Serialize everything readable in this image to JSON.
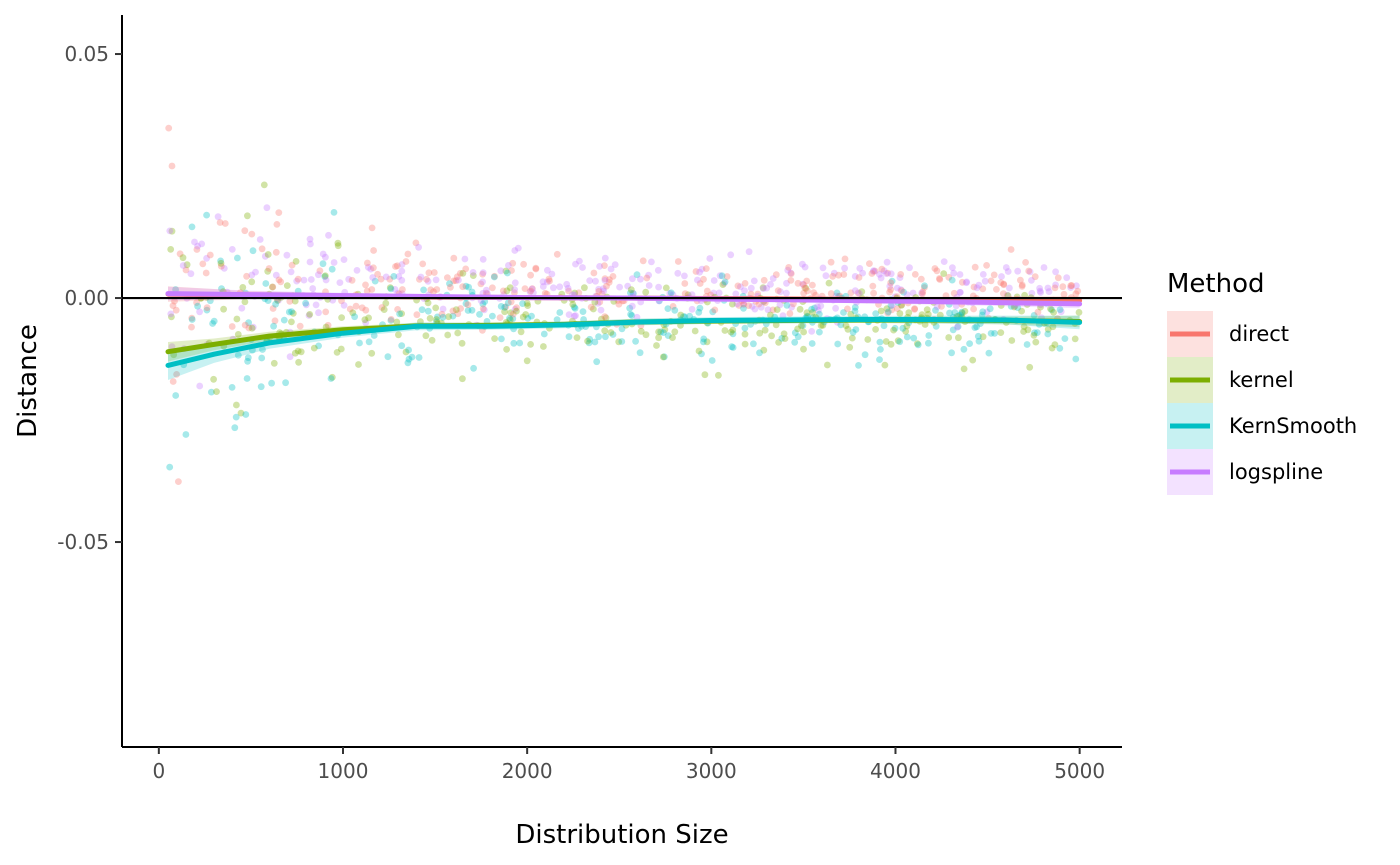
{
  "chart_data": {
    "type": "scatter",
    "title": "",
    "xlabel": "Distribution Size",
    "ylabel": "Distance",
    "xlim": [
      -200,
      5230
    ],
    "ylim": [
      -0.092,
      0.058
    ],
    "x_ticks": [
      0,
      1000,
      2000,
      3000,
      4000,
      5000
    ],
    "x_tick_labels": [
      "0",
      "1000",
      "2000",
      "3000",
      "4000",
      "5000"
    ],
    "y_ticks": [
      0.05,
      0.0,
      -0.05
    ],
    "y_tick_labels": [
      "0.05",
      "0.00",
      "-0.05"
    ],
    "reference_line_y": 0,
    "grid": false,
    "legend": {
      "title": "Method",
      "position": "right",
      "entries": [
        {
          "label": "direct",
          "color": "#F8766D"
        },
        {
          "label": "kernel",
          "color": "#7CAE00"
        },
        {
          "label": "KernSmooth",
          "color": "#00BFC4"
        },
        {
          "label": "logspline",
          "color": "#C77CFF"
        }
      ]
    },
    "series": [
      {
        "name": "direct",
        "color": "#F8766D",
        "smooth": {
          "x": [
            50,
            500,
            1000,
            1500,
            2000,
            2500,
            3000,
            3500,
            4000,
            4500,
            5000
          ],
          "y": [
            0.0008,
            0.0006,
            0.0004,
            0.0002,
            0.0001,
            0.0,
            -0.0001,
            -0.0002,
            -0.0003,
            -0.0004,
            -0.0005
          ],
          "band": [
            0.0016,
            0.0008,
            0.0006,
            0.0005,
            0.0005,
            0.0005,
            0.0005,
            0.0005,
            0.0006,
            0.0007,
            0.0009
          ]
        },
        "scatter": {
          "x_range": [
            50,
            5000
          ],
          "center": 0.002,
          "spread_small": 0.022,
          "spread_large": 0.005,
          "count": 290
        }
      },
      {
        "name": "kernel",
        "color": "#7CAE00",
        "smooth": {
          "x": [
            50,
            300,
            600,
            1000,
            1400,
            1800,
            2200,
            2600,
            3000,
            3400,
            3800,
            4200,
            4600,
            5000
          ],
          "y": [
            -0.011,
            -0.0095,
            -0.0078,
            -0.0065,
            -0.0057,
            -0.0056,
            -0.0054,
            -0.0049,
            -0.0047,
            -0.0046,
            -0.0045,
            -0.0045,
            -0.0046,
            -0.0048
          ],
          "band": [
            0.002,
            0.0012,
            0.0009,
            0.0007,
            0.0006,
            0.0006,
            0.0006,
            0.0006,
            0.0006,
            0.0006,
            0.0006,
            0.0007,
            0.0008,
            0.0012
          ]
        },
        "scatter": {
          "x_range": [
            50,
            5000
          ],
          "center": -0.005,
          "spread_small": 0.028,
          "spread_large": 0.0065,
          "count": 290
        }
      },
      {
        "name": "KernSmooth",
        "color": "#00BFC4",
        "smooth": {
          "x": [
            50,
            300,
            600,
            1000,
            1400,
            1800,
            2200,
            2600,
            3000,
            3400,
            3800,
            4200,
            4600,
            5000
          ],
          "y": [
            -0.0138,
            -0.0115,
            -0.0092,
            -0.0072,
            -0.0058,
            -0.0058,
            -0.0055,
            -0.0049,
            -0.0046,
            -0.0045,
            -0.0044,
            -0.0044,
            -0.0045,
            -0.005
          ],
          "band": [
            0.003,
            0.0018,
            0.0012,
            0.0009,
            0.0008,
            0.0007,
            0.0007,
            0.0007,
            0.0007,
            0.0007,
            0.0007,
            0.0008,
            0.0009,
            0.0014
          ]
        },
        "scatter": {
          "x_range": [
            50,
            5000
          ],
          "center": -0.005,
          "spread_small": 0.03,
          "spread_large": 0.0065,
          "count": 290
        }
      },
      {
        "name": "logspline",
        "color": "#C77CFF",
        "smooth": {
          "x": [
            50,
            500,
            1000,
            1500,
            2000,
            2500,
            3000,
            3500,
            4000,
            4500,
            5000
          ],
          "y": [
            0.0009,
            0.0007,
            0.0005,
            0.0003,
            0.0001,
            0.0,
            -0.0002,
            -0.0004,
            -0.0006,
            -0.0009,
            -0.0012
          ],
          "band": [
            0.0014,
            0.0008,
            0.0006,
            0.0005,
            0.0005,
            0.0005,
            0.0005,
            0.0005,
            0.0006,
            0.0007,
            0.0009
          ]
        },
        "scatter": {
          "x_range": [
            50,
            5000
          ],
          "center": 0.002,
          "spread_small": 0.024,
          "spread_large": 0.0055,
          "count": 290
        }
      }
    ]
  }
}
